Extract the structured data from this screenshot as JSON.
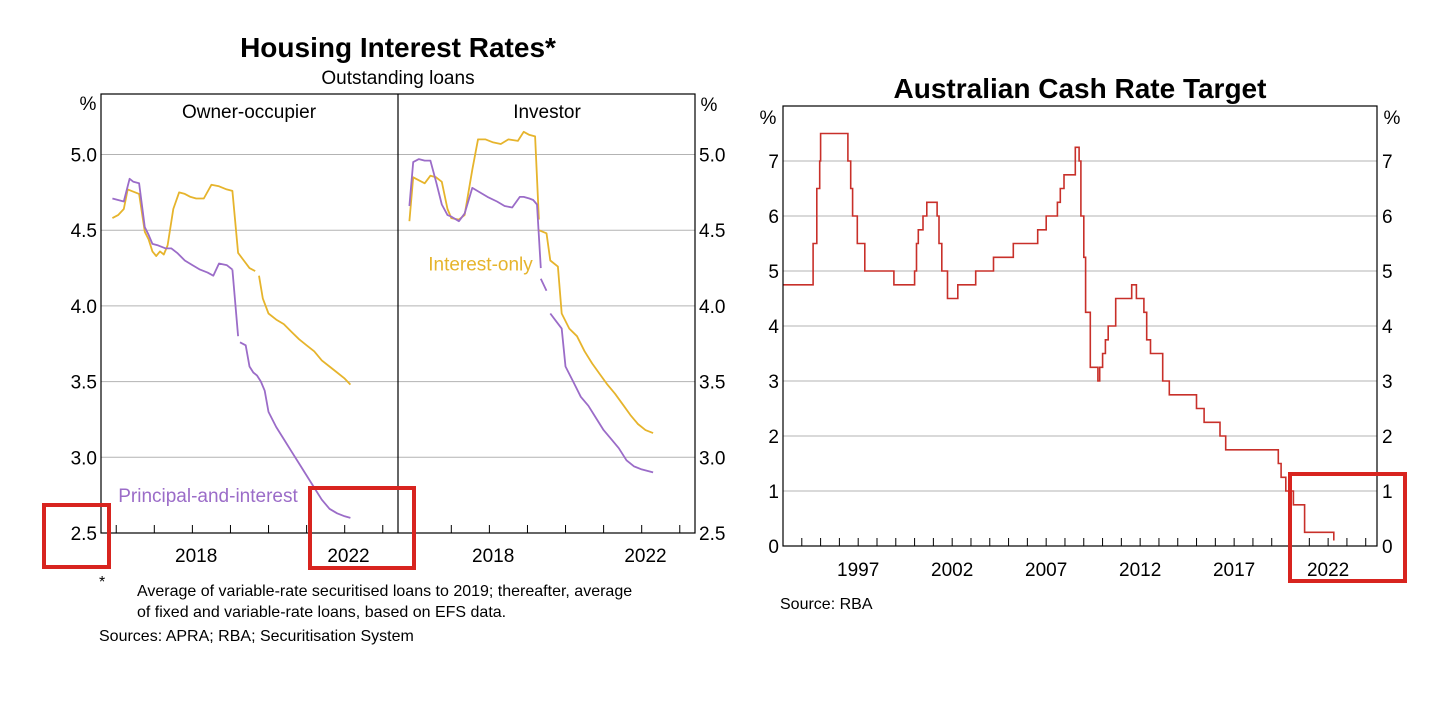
{
  "chart_data": [
    {
      "type": "line",
      "title": "Housing Interest Rates*",
      "subtitle": "Outstanding loans",
      "unit_label": "%",
      "ylim": [
        2.5,
        5.4
      ],
      "yticks": [
        2.5,
        3.0,
        3.5,
        4.0,
        4.5,
        5.0
      ],
      "ytick_labels": [
        "2.5",
        "3.0",
        "3.5",
        "4.0",
        "4.5",
        "5.0"
      ],
      "xlim": [
        2015.6,
        2023.4
      ],
      "xtick_labels": [
        {
          "label": "2018",
          "x": 2018.1
        },
        {
          "label": "2022",
          "x": 2022.1
        }
      ],
      "colors": {
        "interest_only": "#E6B42C",
        "principal_and_interest": "#9B6CC8"
      },
      "panels": [
        {
          "name": "Owner-occupier",
          "series_label": {
            "series": "principal_and_interest",
            "text": "Principal-and-interest",
            "x": 2016.0,
            "y": 2.75
          },
          "series": [
            {
              "name": "Interest-only",
              "key": "interest_only",
              "segments": [
                {
                  "x": [
                    2015.9,
                    2016.05,
                    2016.2,
                    2016.3,
                    2016.4,
                    2016.6,
                    2016.75,
                    2016.85,
                    2016.95,
                    2017.05,
                    2017.15,
                    2017.25,
                    2017.35,
                    2017.5,
                    2017.65,
                    2017.8,
                    2017.95,
                    2018.1,
                    2018.3,
                    2018.5,
                    2018.7,
                    2018.9,
                    2019.05,
                    2019.2,
                    2019.35,
                    2019.5,
                    2019.65
                  ],
                  "y": [
                    4.58,
                    4.6,
                    4.64,
                    4.77,
                    4.76,
                    4.74,
                    4.49,
                    4.44,
                    4.36,
                    4.33,
                    4.36,
                    4.34,
                    4.4,
                    4.64,
                    4.75,
                    4.74,
                    4.72,
                    4.71,
                    4.71,
                    4.8,
                    4.79,
                    4.77,
                    4.76,
                    4.35,
                    4.3,
                    4.25,
                    4.23
                  ]
                },
                {
                  "x": [
                    2019.75,
                    2019.85,
                    2020.0,
                    2020.2,
                    2020.4,
                    2020.6,
                    2020.8,
                    2021.0,
                    2021.2,
                    2021.4,
                    2021.6,
                    2021.8,
                    2022.0,
                    2022.15
                  ],
                  "y": [
                    4.2,
                    4.05,
                    3.95,
                    3.91,
                    3.88,
                    3.83,
                    3.78,
                    3.74,
                    3.7,
                    3.64,
                    3.6,
                    3.56,
                    3.52,
                    3.48
                  ]
                }
              ]
            },
            {
              "name": "Principal-and-interest",
              "key": "principal_and_interest",
              "segments": [
                {
                  "x": [
                    2015.9,
                    2016.2,
                    2016.35,
                    2016.45,
                    2016.6,
                    2016.75,
                    2016.85,
                    2016.95,
                    2017.1,
                    2017.3,
                    2017.45,
                    2017.6,
                    2017.8,
                    2018.0,
                    2018.2,
                    2018.4,
                    2018.55,
                    2018.7,
                    2018.9,
                    2019.05
                  ],
                  "y": [
                    4.71,
                    4.69,
                    4.84,
                    4.82,
                    4.81,
                    4.52,
                    4.47,
                    4.41,
                    4.4,
                    4.38,
                    4.38,
                    4.35,
                    4.3,
                    4.27,
                    4.24,
                    4.22,
                    4.2,
                    4.28,
                    4.27,
                    4.24
                  ]
                },
                {
                  "x": [
                    2019.05,
                    2019.2
                  ],
                  "y": [
                    4.24,
                    3.8
                  ]
                },
                {
                  "x": [
                    2019.25,
                    2019.4,
                    2019.5,
                    2019.6,
                    2019.7,
                    2019.8,
                    2019.9,
                    2020.0,
                    2020.2,
                    2020.4,
                    2020.6,
                    2020.8,
                    2021.0,
                    2021.2,
                    2021.4,
                    2021.6,
                    2021.8,
                    2022.0,
                    2022.15
                  ],
                  "y": [
                    3.76,
                    3.74,
                    3.6,
                    3.56,
                    3.54,
                    3.5,
                    3.44,
                    3.3,
                    3.2,
                    3.12,
                    3.04,
                    2.96,
                    2.88,
                    2.8,
                    2.72,
                    2.66,
                    2.63,
                    2.61,
                    2.6
                  ]
                }
              ]
            }
          ]
        },
        {
          "name": "Investor",
          "series_label": {
            "series": "interest_only",
            "text": "Interest-only",
            "x": 2016.0,
            "y": 4.28
          },
          "series": [
            {
              "name": "Interest-only",
              "key": "interest_only",
              "segments": [
                {
                  "x": [
                    2015.9,
                    2016.0,
                    2016.15,
                    2016.3,
                    2016.45,
                    2016.6,
                    2016.75,
                    2016.9,
                    2017.0,
                    2017.2,
                    2017.35,
                    2017.55,
                    2017.7,
                    2017.9,
                    2018.1,
                    2018.3,
                    2018.5,
                    2018.75,
                    2018.9,
                    2019.05,
                    2019.2,
                    2019.3
                  ],
                  "y": [
                    4.56,
                    4.85,
                    4.83,
                    4.81,
                    4.86,
                    4.85,
                    4.82,
                    4.64,
                    4.58,
                    4.57,
                    4.6,
                    4.9,
                    5.1,
                    5.1,
                    5.08,
                    5.07,
                    5.1,
                    5.09,
                    5.15,
                    5.13,
                    5.12,
                    4.57
                  ]
                },
                {
                  "x": [
                    2019.3,
                    2019.5,
                    2019.6,
                    2019.8,
                    2019.9,
                    2020.1,
                    2020.3,
                    2020.5,
                    2020.7,
                    2020.9,
                    2021.1,
                    2021.3,
                    2021.5,
                    2021.7,
                    2021.9,
                    2022.1,
                    2022.3
                  ],
                  "y": [
                    4.5,
                    4.48,
                    4.3,
                    4.26,
                    3.95,
                    3.85,
                    3.8,
                    3.7,
                    3.62,
                    3.55,
                    3.48,
                    3.42,
                    3.35,
                    3.28,
                    3.22,
                    3.18,
                    3.16
                  ]
                }
              ]
            },
            {
              "name": "Principal-and-interest",
              "key": "principal_and_interest",
              "segments": [
                {
                  "x": [
                    2015.9,
                    2016.0,
                    2016.15,
                    2016.3,
                    2016.45,
                    2016.6,
                    2016.75,
                    2016.9,
                    2017.0,
                    2017.2,
                    2017.35,
                    2017.55,
                    2017.75,
                    2017.95,
                    2018.2,
                    2018.4,
                    2018.6,
                    2018.8,
                    2018.9,
                    2019.05,
                    2019.15,
                    2019.25,
                    2019.35
                  ],
                  "y": [
                    4.66,
                    4.95,
                    4.97,
                    4.96,
                    4.96,
                    4.82,
                    4.67,
                    4.6,
                    4.59,
                    4.56,
                    4.61,
                    4.78,
                    4.75,
                    4.72,
                    4.69,
                    4.66,
                    4.65,
                    4.72,
                    4.72,
                    4.71,
                    4.7,
                    4.67,
                    4.25
                  ]
                },
                {
                  "x": [
                    2019.35,
                    2019.5
                  ],
                  "y": [
                    4.18,
                    4.1
                  ]
                },
                {
                  "x": [
                    2019.6,
                    2019.75,
                    2019.9,
                    2020.0,
                    2020.2,
                    2020.4,
                    2020.6,
                    2020.8,
                    2021.0,
                    2021.2,
                    2021.4,
                    2021.6,
                    2021.8,
                    2022.0,
                    2022.3
                  ],
                  "y": [
                    3.95,
                    3.9,
                    3.85,
                    3.6,
                    3.5,
                    3.4,
                    3.34,
                    3.26,
                    3.18,
                    3.12,
                    3.06,
                    2.98,
                    2.94,
                    2.92,
                    2.9
                  ]
                }
              ]
            }
          ]
        }
      ]
    },
    {
      "type": "line",
      "title": "Australian Cash Rate Target",
      "unit_label": "%",
      "ylim": [
        0,
        8
      ],
      "yticks": [
        0,
        1,
        2,
        3,
        4,
        5,
        6,
        7
      ],
      "ytick_labels": [
        "0",
        "1",
        "2",
        "3",
        "4",
        "5",
        "6",
        "7"
      ],
      "xlim": [
        1993,
        2024.6
      ],
      "xtick_labels": [
        {
          "label": "1997",
          "x": 1997
        },
        {
          "label": "2002",
          "x": 2002
        },
        {
          "label": "2007",
          "x": 2007
        },
        {
          "label": "2012",
          "x": 2012
        },
        {
          "label": "2017",
          "x": 2017
        },
        {
          "label": "2022",
          "x": 2022
        }
      ],
      "color": "#C8302A",
      "series": [
        {
          "name": "Cash rate target",
          "step": true,
          "x": [
            1993.0,
            1994.6,
            1994.8,
            1994.95,
            1995.0,
            1996.45,
            1996.6,
            1996.7,
            1996.95,
            1997.35,
            1997.55,
            1998.9,
            2000.0,
            2000.1,
            2000.2,
            2000.45,
            2000.65,
            2001.2,
            2001.3,
            2001.45,
            2001.75,
            2002.3,
            2003.25,
            2004.2,
            2005.25,
            2006.25,
            2006.55,
            2007.0,
            2007.6,
            2007.75,
            2007.95,
            2008.55,
            2008.75,
            2008.85,
            2009.0,
            2009.1,
            2009.35,
            2009.75,
            2009.85,
            2010.0,
            2010.15,
            2010.3,
            2010.7,
            2011.55,
            2011.8,
            2012.2,
            2012.35,
            2012.55,
            2013.2,
            2013.55,
            2015.0,
            2015.4,
            2016.25,
            2016.55,
            2019.35,
            2019.5,
            2019.75,
            2020.15,
            2020.75,
            2022.3
          ],
          "y": [
            4.75,
            5.5,
            6.5,
            7.0,
            7.5,
            7.0,
            6.5,
            6.0,
            5.5,
            5.0,
            5.0,
            4.75,
            5.0,
            5.5,
            5.75,
            6.0,
            6.25,
            6.0,
            5.5,
            5.0,
            4.5,
            4.75,
            5.0,
            5.25,
            5.5,
            5.5,
            5.75,
            6.0,
            6.25,
            6.5,
            6.75,
            7.25,
            7.0,
            6.0,
            5.25,
            4.25,
            3.25,
            3.0,
            3.25,
            3.5,
            3.75,
            4.0,
            4.5,
            4.75,
            4.5,
            4.25,
            3.75,
            3.5,
            3.0,
            2.75,
            2.5,
            2.25,
            2.0,
            1.75,
            1.5,
            1.25,
            1.0,
            0.75,
            0.25,
            0.1
          ]
        }
      ]
    }
  ],
  "footnote_marker": "*",
  "footnote_line1": "Average of variable-rate securitised loans to 2019; thereafter, average",
  "footnote_line2": "of fixed and variable-rate loans, based on EFS data.",
  "left_sources": "Sources: APRA; RBA; Securitisation System",
  "right_source": "Source:   RBA",
  "highlight_color": "#D8241F"
}
